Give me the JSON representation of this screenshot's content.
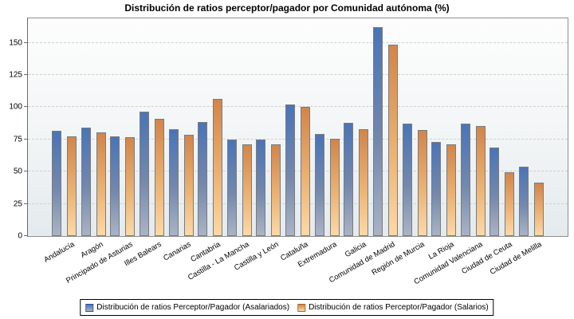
{
  "title": "Distribución de ratios perceptor/pagador por Comunidad autónoma (%)",
  "chart_data": {
    "type": "bar",
    "title": "Distribución de ratios perceptor/pagador por Comunidad autónoma (%)",
    "categories": [
      "Andalucía",
      "Aragón",
      "Principado de Asturias",
      "Illes Balears",
      "Canarias",
      "Cantabria",
      "Castilla - La Mancha",
      "Castilla y León",
      "Cataluña",
      "Extremadura",
      "Galicia",
      "Comunidad de Madrid",
      "Región de Murcia",
      "La Rioja",
      "Comunidad Valenciana",
      "Ciudad de Ceuta",
      "Ciudad de Melilla"
    ],
    "series": [
      {
        "name": "Distribución de ratios Perceptor/Pagador (Asalariados)",
        "color_top": "#4a74b8",
        "color_bottom": "#aab3c5",
        "values": [
          81.5,
          84.5,
          77.5,
          96.5,
          83,
          88.5,
          75,
          75,
          102,
          79.5,
          88,
          162,
          87,
          73,
          87.5,
          69,
          54
        ]
      },
      {
        "name": "Distribución de ratios Perceptor/Pagador (Salarios)",
        "color_top": "#d2854a",
        "color_bottom": "#fdd8a6",
        "values": [
          77.5,
          80.5,
          76.5,
          91,
          78.5,
          106.5,
          71.5,
          71.5,
          100,
          75.5,
          83,
          148.5,
          82.5,
          71,
          85.5,
          49.5,
          41.5
        ]
      }
    ],
    "xlabel": "",
    "ylabel": "",
    "ylim": [
      0,
      169
    ],
    "yticks": [
      0,
      25,
      50,
      75,
      100,
      125,
      150
    ],
    "grid": true,
    "grid_style": "dashed",
    "legend_position": "bottom",
    "colors": {
      "bar_border": "#7b7b7b",
      "gridline": "#cfcfcf",
      "plot_border": "#8f8f8f",
      "plot_bg_top": "#fdfdfd",
      "plot_bg_bottom": "#e4eaed"
    }
  }
}
